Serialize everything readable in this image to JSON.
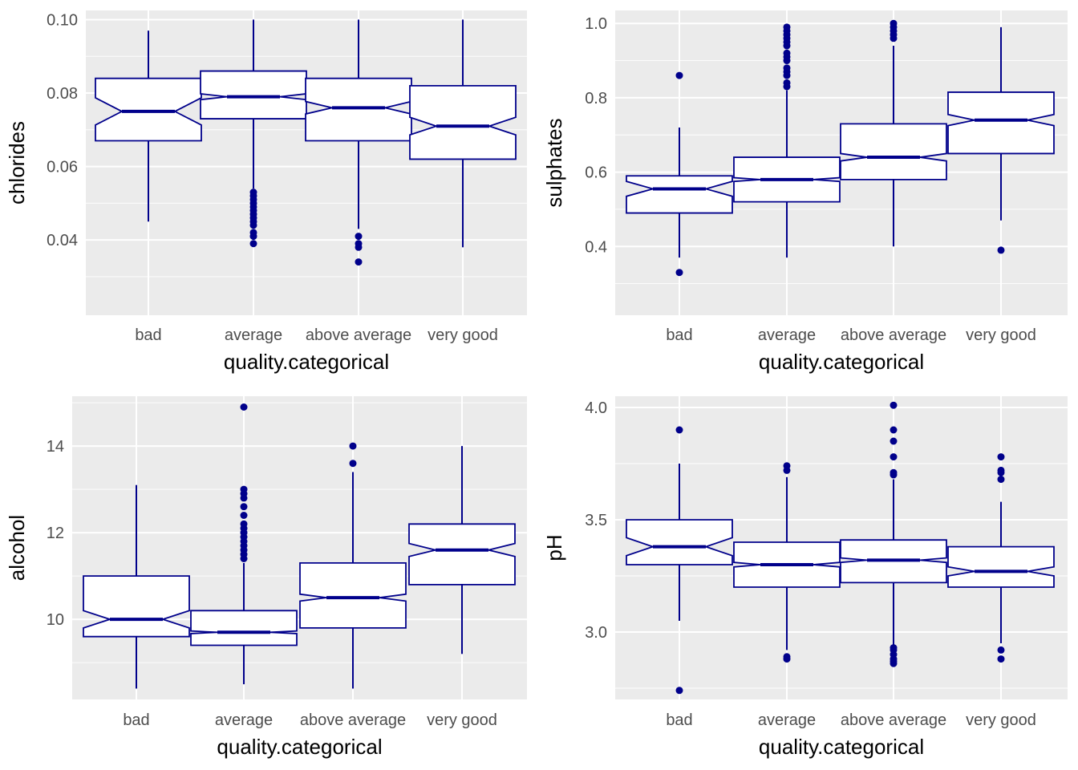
{
  "colors": {
    "box": "#00008B",
    "panel": "#EBEBEB",
    "grid": "#FFFFFF",
    "tick_text": "#4D4D4D"
  },
  "chart_data": [
    {
      "type": "boxplot",
      "notched": true,
      "xlabel": "quality.categorical",
      "ylabel": "chlorides",
      "categories": [
        "bad",
        "average",
        "above average",
        "very good"
      ],
      "ylim": [
        0.0195,
        0.1025
      ],
      "yticks": [
        0.04,
        0.06,
        0.08,
        0.1
      ],
      "yticklabels": [
        "0.04",
        "0.06",
        "0.08",
        "0.10"
      ],
      "grid": true,
      "boxes": [
        {
          "category": "bad",
          "whislo": 0.045,
          "q1": 0.067,
          "med": 0.075,
          "q3": 0.084,
          "whishi": 0.097,
          "notch": [
            0.0713,
            0.0787
          ],
          "fliers": []
        },
        {
          "category": "average",
          "whislo": 0.054,
          "q1": 0.073,
          "med": 0.079,
          "q3": 0.086,
          "whishi": 0.1,
          "notch": [
            0.0782,
            0.0798
          ],
          "fliers": [
            0.039,
            0.041,
            0.042,
            0.044,
            0.045,
            0.046,
            0.047,
            0.048,
            0.049,
            0.05,
            0.051,
            0.052,
            0.053
          ]
        },
        {
          "category": "above average",
          "whislo": 0.043,
          "q1": 0.067,
          "med": 0.076,
          "q3": 0.084,
          "whishi": 0.1,
          "notch": [
            0.0743,
            0.0777
          ],
          "fliers": [
            0.034,
            0.038,
            0.039,
            0.041
          ]
        },
        {
          "category": "very good",
          "whislo": 0.038,
          "q1": 0.062,
          "med": 0.071,
          "q3": 0.082,
          "whishi": 0.1,
          "notch": [
            0.0686,
            0.0734
          ],
          "fliers": []
        }
      ]
    },
    {
      "type": "boxplot",
      "notched": true,
      "xlabel": "quality.categorical",
      "ylabel": "sulphates",
      "categories": [
        "bad",
        "average",
        "above average",
        "very good"
      ],
      "ylim": [
        0.215,
        1.035
      ],
      "yticks": [
        0.4,
        0.6,
        0.8,
        1.0
      ],
      "yticklabels": [
        "0.4",
        "0.6",
        "0.8",
        "1.0"
      ],
      "grid": true,
      "boxes": [
        {
          "category": "bad",
          "whislo": 0.37,
          "q1": 0.49,
          "med": 0.555,
          "q3": 0.59,
          "whishi": 0.72,
          "notch": [
            0.535,
            0.575
          ],
          "fliers": [
            0.33,
            0.86
          ]
        },
        {
          "category": "average",
          "whislo": 0.37,
          "q1": 0.52,
          "med": 0.58,
          "q3": 0.64,
          "whishi": 0.82,
          "notch": [
            0.575,
            0.585
          ],
          "fliers": [
            0.83,
            0.84,
            0.86,
            0.87,
            0.88,
            0.9,
            0.91,
            0.92,
            0.94,
            0.95,
            0.96,
            0.97,
            0.98,
            0.99
          ]
        },
        {
          "category": "above average",
          "whislo": 0.4,
          "q1": 0.58,
          "med": 0.64,
          "q3": 0.73,
          "whishi": 0.94,
          "notch": [
            0.63,
            0.65
          ],
          "fliers": [
            0.96,
            0.97,
            0.98,
            0.99,
            1.0
          ]
        },
        {
          "category": "very good",
          "whislo": 0.47,
          "q1": 0.65,
          "med": 0.74,
          "q3": 0.815,
          "whishi": 0.99,
          "notch": [
            0.725,
            0.755
          ],
          "fliers": [
            0.39
          ]
        }
      ]
    },
    {
      "type": "boxplot",
      "notched": true,
      "xlabel": "quality.categorical",
      "ylabel": "alcohol",
      "categories": [
        "bad",
        "average",
        "above average",
        "very good"
      ],
      "ylim": [
        8.15,
        15.15
      ],
      "yticks": [
        10,
        12,
        14
      ],
      "yticklabels": [
        "10",
        "12",
        "14"
      ],
      "grid": true,
      "boxes": [
        {
          "category": "bad",
          "whislo": 8.4,
          "q1": 9.6,
          "med": 10.0,
          "q3": 11.0,
          "whishi": 13.1,
          "notch": [
            9.8,
            10.2
          ],
          "fliers": []
        },
        {
          "category": "average",
          "whislo": 8.5,
          "q1": 9.4,
          "med": 9.7,
          "q3": 10.2,
          "whishi": 11.3,
          "notch": [
            9.67,
            9.73
          ],
          "fliers": [
            11.4,
            11.5,
            11.6,
            11.7,
            11.8,
            11.9,
            12.0,
            12.1,
            12.2,
            12.4,
            12.6,
            12.8,
            12.9,
            13.0,
            14.9
          ]
        },
        {
          "category": "above average",
          "whislo": 8.4,
          "q1": 9.8,
          "med": 10.5,
          "q3": 11.3,
          "whishi": 13.4,
          "notch": [
            10.42,
            10.58
          ],
          "fliers": [
            13.6,
            14.0
          ]
        },
        {
          "category": "very good",
          "whislo": 9.2,
          "q1": 10.8,
          "med": 11.6,
          "q3": 12.2,
          "whishi": 14.0,
          "notch": [
            11.45,
            11.75
          ],
          "fliers": []
        }
      ]
    },
    {
      "type": "boxplot",
      "notched": true,
      "xlabel": "quality.categorical",
      "ylabel": "pH",
      "categories": [
        "bad",
        "average",
        "above average",
        "very good"
      ],
      "ylim": [
        2.7,
        4.05
      ],
      "yticks": [
        3.0,
        3.5,
        4.0
      ],
      "yticklabels": [
        "3.0",
        "3.5",
        "4.0"
      ],
      "grid": true,
      "boxes": [
        {
          "category": "bad",
          "whislo": 3.05,
          "q1": 3.3,
          "med": 3.38,
          "q3": 3.5,
          "whishi": 3.75,
          "notch": [
            3.34,
            3.42
          ],
          "fliers": [
            2.74,
            3.9
          ]
        },
        {
          "category": "average",
          "whislo": 2.92,
          "q1": 3.2,
          "med": 3.3,
          "q3": 3.4,
          "whishi": 3.69,
          "notch": [
            3.29,
            3.31
          ],
          "fliers": [
            2.88,
            2.89,
            3.72,
            3.74
          ]
        },
        {
          "category": "above average",
          "whislo": 2.94,
          "q1": 3.22,
          "med": 3.32,
          "q3": 3.41,
          "whishi": 3.68,
          "notch": [
            3.31,
            3.33
          ],
          "fliers": [
            2.86,
            2.87,
            2.88,
            2.9,
            2.92,
            2.93,
            3.7,
            3.71,
            3.78,
            3.85,
            3.9,
            4.01
          ]
        },
        {
          "category": "very good",
          "whislo": 2.95,
          "q1": 3.2,
          "med": 3.27,
          "q3": 3.38,
          "whishi": 3.58,
          "notch": [
            3.25,
            3.29
          ],
          "fliers": [
            2.88,
            2.92,
            3.68,
            3.71,
            3.72,
            3.78
          ]
        }
      ]
    }
  ]
}
